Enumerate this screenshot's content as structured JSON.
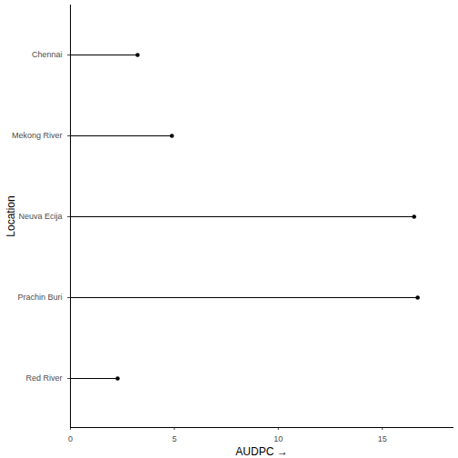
{
  "chart_data": {
    "type": "lollipop",
    "orientation": "horizontal",
    "x_label": "AUDPC",
    "y_label": "Location",
    "categories": [
      "Chennai",
      "Mekong River",
      "Neuva Ecija",
      "Prachin Buri",
      "Red River"
    ],
    "values": [
      3.23,
      4.88,
      16.53,
      16.7,
      2.27
    ],
    "color": "#000000",
    "xlim": [
      0,
      18.4
    ],
    "xticks": [
      0,
      5,
      10,
      15
    ],
    "grid": false
  }
}
